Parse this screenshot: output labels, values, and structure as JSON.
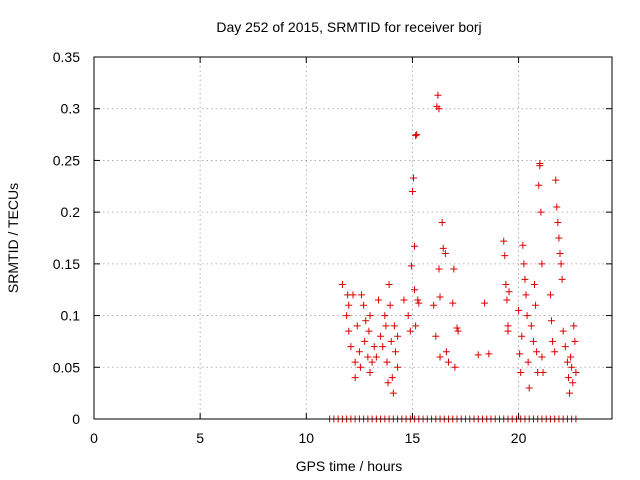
{
  "chart_data": {
    "type": "scatter",
    "title": "Day 252 of 2015, SRMTID for receiver borj",
    "xlabel": "GPS time / hours",
    "ylabel": "SRMTID / TECUs",
    "xlim": [
      0,
      24.4
    ],
    "ylim": [
      0,
      0.35
    ],
    "xticks": [
      "0",
      "5",
      "10",
      "15",
      "20"
    ],
    "yticks": [
      "0",
      "0.05",
      "0.1",
      "0.15",
      "0.2",
      "0.25",
      "0.3",
      "0.35"
    ],
    "grid": true,
    "marker": "+",
    "series": [
      {
        "name": "borj",
        "color": "#dd0000",
        "points": [
          [
            11.7,
            0.13
          ],
          [
            11.9,
            0.1
          ],
          [
            11.95,
            0.12
          ],
          [
            12.0,
            0.085
          ],
          [
            12.0,
            0.11
          ],
          [
            12.1,
            0.07
          ],
          [
            12.2,
            0.12
          ],
          [
            12.3,
            0.055
          ],
          [
            12.3,
            0.04
          ],
          [
            12.4,
            0.09
          ],
          [
            12.5,
            0.065
          ],
          [
            12.55,
            0.05
          ],
          [
            12.6,
            0.12
          ],
          [
            12.7,
            0.11
          ],
          [
            12.75,
            0.075
          ],
          [
            12.8,
            0.095
          ],
          [
            12.9,
            0.06
          ],
          [
            12.95,
            0.085
          ],
          [
            13.0,
            0.045
          ],
          [
            13.0,
            0.1
          ],
          [
            13.1,
            0.055
          ],
          [
            13.2,
            0.07
          ],
          [
            13.3,
            0.06
          ],
          [
            13.4,
            0.115
          ],
          [
            13.5,
            0.08
          ],
          [
            13.6,
            0.07
          ],
          [
            13.7,
            0.1
          ],
          [
            13.75,
            0.09
          ],
          [
            13.8,
            0.055
          ],
          [
            13.85,
            0.035
          ],
          [
            13.9,
            0.13
          ],
          [
            13.95,
            0.11
          ],
          [
            14.0,
            0.075
          ],
          [
            14.05,
            0.04
          ],
          [
            14.1,
            0.025
          ],
          [
            14.15,
            0.09
          ],
          [
            14.2,
            0.065
          ],
          [
            14.3,
            0.08
          ],
          [
            14.3,
            0.05
          ],
          [
            14.6,
            0.115
          ],
          [
            14.8,
            0.1
          ],
          [
            14.9,
            0.085
          ],
          [
            14.95,
            0.148
          ],
          [
            15.0,
            0.22
          ],
          [
            15.05,
            0.233
          ],
          [
            15.1,
            0.167
          ],
          [
            15.1,
            0.125
          ],
          [
            15.15,
            0.09
          ],
          [
            15.15,
            0.274
          ],
          [
            15.2,
            0.275
          ],
          [
            15.25,
            0.115
          ],
          [
            15.3,
            0.112
          ],
          [
            16.0,
            0.11
          ],
          [
            16.1,
            0.08
          ],
          [
            16.15,
            0.302
          ],
          [
            16.2,
            0.313
          ],
          [
            16.25,
            0.3
          ],
          [
            16.25,
            0.145
          ],
          [
            16.3,
            0.118
          ],
          [
            16.3,
            0.06
          ],
          [
            16.4,
            0.19
          ],
          [
            16.45,
            0.165
          ],
          [
            16.55,
            0.16
          ],
          [
            16.6,
            0.065
          ],
          [
            16.7,
            0.055
          ],
          [
            16.9,
            0.112
          ],
          [
            16.95,
            0.145
          ],
          [
            17.0,
            0.05
          ],
          [
            17.1,
            0.088
          ],
          [
            17.15,
            0.085
          ],
          [
            18.1,
            0.062
          ],
          [
            18.4,
            0.112
          ],
          [
            18.6,
            0.063
          ],
          [
            19.3,
            0.172
          ],
          [
            19.35,
            0.158
          ],
          [
            19.4,
            0.13
          ],
          [
            19.45,
            0.115
          ],
          [
            19.5,
            0.09
          ],
          [
            19.5,
            0.085
          ],
          [
            19.55,
            0.123
          ],
          [
            20.0,
            0.105
          ],
          [
            20.05,
            0.063
          ],
          [
            20.1,
            0.045
          ],
          [
            20.15,
            0.08
          ],
          [
            20.2,
            0.168
          ],
          [
            20.25,
            0.15
          ],
          [
            20.3,
            0.135
          ],
          [
            20.35,
            0.12
          ],
          [
            20.4,
            0.1
          ],
          [
            20.45,
            0.055
          ],
          [
            20.5,
            0.03
          ],
          [
            20.6,
            0.09
          ],
          [
            20.7,
            0.075
          ],
          [
            20.75,
            0.13
          ],
          [
            20.8,
            0.11
          ],
          [
            20.85,
            0.065
          ],
          [
            20.9,
            0.045
          ],
          [
            20.95,
            0.226
          ],
          [
            21.0,
            0.247
          ],
          [
            21.0,
            0.245
          ],
          [
            21.05,
            0.2
          ],
          [
            21.1,
            0.15
          ],
          [
            21.1,
            0.06
          ],
          [
            21.15,
            0.045
          ],
          [
            21.5,
            0.12
          ],
          [
            21.55,
            0.095
          ],
          [
            21.6,
            0.075
          ],
          [
            21.7,
            0.065
          ],
          [
            21.75,
            0.231
          ],
          [
            21.8,
            0.205
          ],
          [
            21.85,
            0.19
          ],
          [
            21.9,
            0.175
          ],
          [
            21.95,
            0.16
          ],
          [
            22.0,
            0.15
          ],
          [
            22.05,
            0.135
          ],
          [
            22.1,
            0.085
          ],
          [
            22.2,
            0.07
          ],
          [
            22.3,
            0.055
          ],
          [
            22.35,
            0.04
          ],
          [
            22.4,
            0.025
          ],
          [
            22.45,
            0.06
          ],
          [
            22.5,
            0.05
          ],
          [
            22.55,
            0.035
          ],
          [
            22.6,
            0.09
          ],
          [
            22.65,
            0.075
          ],
          [
            22.7,
            0.045
          ]
        ],
        "baseline_x": [
          11.1,
          11.3,
          11.5,
          11.7,
          11.9,
          12.1,
          12.3,
          12.5,
          12.7,
          12.9,
          13.1,
          13.3,
          13.5,
          13.7,
          13.9,
          14.1,
          14.3,
          14.5,
          14.7,
          14.9,
          15.1,
          15.3,
          15.5,
          15.7,
          15.9,
          16.1,
          16.3,
          16.5,
          16.7,
          16.9,
          17.1,
          17.3,
          17.5,
          17.7,
          17.9,
          18.1,
          18.3,
          18.5,
          18.7,
          18.9,
          19.1,
          19.3,
          19.5,
          19.7,
          19.9,
          20.1,
          20.3,
          20.5,
          20.7,
          20.9,
          21.1,
          21.3,
          21.5,
          21.7,
          21.9,
          22.1,
          22.3,
          22.5,
          22.7
        ]
      }
    ]
  }
}
